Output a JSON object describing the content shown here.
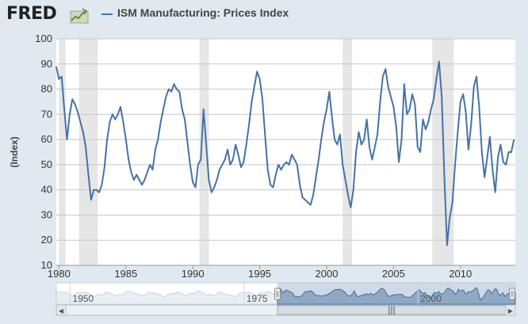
{
  "header": {
    "logo_text": "FRED",
    "logo_icon": "trend-chart-icon",
    "legend_label": "ISM Manufacturing: Prices Index",
    "series_color": "#4572a7"
  },
  "chart_data": {
    "type": "line",
    "title": "ISM Manufacturing: Prices Index",
    "xlabel": "",
    "ylabel": "(Index)",
    "xlim": [
      1979.8,
      2014.1
    ],
    "ylim": [
      10,
      100
    ],
    "x_ticks": [
      1980,
      1985,
      1990,
      1995,
      2000,
      2005,
      2010
    ],
    "x_tick_labels": [
      "1980",
      "1985",
      "1990",
      "1995",
      "2000",
      "2005",
      "2010"
    ],
    "y_ticks": [
      10,
      20,
      30,
      40,
      50,
      60,
      70,
      80,
      90,
      100
    ],
    "y_tick_labels": [
      "10",
      "20",
      "30",
      "40",
      "50",
      "60",
      "70",
      "80",
      "90",
      "100"
    ],
    "grid": "horizontal",
    "recessions": [
      [
        1980.0,
        1980.5
      ],
      [
        1981.5,
        1982.9
      ],
      [
        1990.5,
        1991.2
      ],
      [
        2001.2,
        2001.9
      ],
      [
        2007.9,
        2009.5
      ]
    ],
    "series": [
      {
        "name": "ISM Manufacturing: Prices Index",
        "color": "#4572a7",
        "points": [
          [
            1979.8,
            89
          ],
          [
            1980.0,
            84
          ],
          [
            1980.2,
            85
          ],
          [
            1980.4,
            72
          ],
          [
            1980.6,
            60
          ],
          [
            1980.8,
            70
          ],
          [
            1981.0,
            76
          ],
          [
            1981.2,
            74
          ],
          [
            1981.4,
            71
          ],
          [
            1981.6,
            67
          ],
          [
            1981.8,
            63
          ],
          [
            1982.0,
            57
          ],
          [
            1982.2,
            46
          ],
          [
            1982.4,
            36
          ],
          [
            1982.6,
            40
          ],
          [
            1982.8,
            40
          ],
          [
            1983.0,
            39
          ],
          [
            1983.2,
            42
          ],
          [
            1983.4,
            49
          ],
          [
            1983.6,
            60
          ],
          [
            1983.8,
            67
          ],
          [
            1984.0,
            70
          ],
          [
            1984.2,
            68
          ],
          [
            1984.4,
            70
          ],
          [
            1984.6,
            73
          ],
          [
            1984.8,
            67
          ],
          [
            1985.0,
            60
          ],
          [
            1985.2,
            52
          ],
          [
            1985.4,
            47
          ],
          [
            1985.6,
            44
          ],
          [
            1985.8,
            46
          ],
          [
            1986.0,
            44
          ],
          [
            1986.2,
            42
          ],
          [
            1986.4,
            44
          ],
          [
            1986.6,
            47
          ],
          [
            1986.8,
            50
          ],
          [
            1987.0,
            48
          ],
          [
            1987.2,
            56
          ],
          [
            1987.4,
            60
          ],
          [
            1987.6,
            67
          ],
          [
            1987.8,
            72
          ],
          [
            1988.0,
            77
          ],
          [
            1988.2,
            80
          ],
          [
            1988.4,
            79
          ],
          [
            1988.6,
            82
          ],
          [
            1988.8,
            80
          ],
          [
            1989.0,
            79
          ],
          [
            1989.2,
            72
          ],
          [
            1989.4,
            68
          ],
          [
            1989.6,
            59
          ],
          [
            1989.8,
            50
          ],
          [
            1990.0,
            43
          ],
          [
            1990.2,
            41
          ],
          [
            1990.4,
            50
          ],
          [
            1990.6,
            52
          ],
          [
            1990.8,
            72
          ],
          [
            1991.0,
            58
          ],
          [
            1991.2,
            44
          ],
          [
            1991.4,
            39
          ],
          [
            1991.6,
            41
          ],
          [
            1991.8,
            44
          ],
          [
            1992.0,
            48
          ],
          [
            1992.2,
            50
          ],
          [
            1992.4,
            52
          ],
          [
            1992.6,
            56
          ],
          [
            1992.8,
            50
          ],
          [
            1993.0,
            52
          ],
          [
            1993.2,
            58
          ],
          [
            1993.4,
            54
          ],
          [
            1993.6,
            49
          ],
          [
            1993.8,
            51
          ],
          [
            1994.0,
            58
          ],
          [
            1994.2,
            66
          ],
          [
            1994.4,
            75
          ],
          [
            1994.6,
            81
          ],
          [
            1994.8,
            87
          ],
          [
            1995.0,
            84
          ],
          [
            1995.2,
            76
          ],
          [
            1995.4,
            62
          ],
          [
            1995.6,
            48
          ],
          [
            1995.8,
            42
          ],
          [
            1996.0,
            41
          ],
          [
            1996.2,
            46
          ],
          [
            1996.4,
            50
          ],
          [
            1996.6,
            48
          ],
          [
            1996.8,
            50
          ],
          [
            1997.0,
            51
          ],
          [
            1997.2,
            50
          ],
          [
            1997.4,
            54
          ],
          [
            1997.6,
            52
          ],
          [
            1997.8,
            50
          ],
          [
            1998.0,
            42
          ],
          [
            1998.2,
            37
          ],
          [
            1998.4,
            36
          ],
          [
            1998.6,
            35
          ],
          [
            1998.8,
            34
          ],
          [
            1999.0,
            38
          ],
          [
            1999.2,
            45
          ],
          [
            1999.4,
            52
          ],
          [
            1999.6,
            60
          ],
          [
            1999.8,
            67
          ],
          [
            2000.0,
            72
          ],
          [
            2000.2,
            79
          ],
          [
            2000.4,
            69
          ],
          [
            2000.6,
            60
          ],
          [
            2000.8,
            58
          ],
          [
            2001.0,
            62
          ],
          [
            2001.2,
            50
          ],
          [
            2001.4,
            44
          ],
          [
            2001.6,
            38
          ],
          [
            2001.8,
            33
          ],
          [
            2002.0,
            40
          ],
          [
            2002.2,
            55
          ],
          [
            2002.4,
            63
          ],
          [
            2002.6,
            58
          ],
          [
            2002.8,
            60
          ],
          [
            2003.0,
            68
          ],
          [
            2003.2,
            57
          ],
          [
            2003.4,
            52
          ],
          [
            2003.6,
            57
          ],
          [
            2003.8,
            62
          ],
          [
            2004.0,
            75
          ],
          [
            2004.2,
            85
          ],
          [
            2004.4,
            88
          ],
          [
            2004.6,
            81
          ],
          [
            2004.8,
            77
          ],
          [
            2005.0,
            73
          ],
          [
            2005.2,
            65
          ],
          [
            2005.4,
            51
          ],
          [
            2005.6,
            60
          ],
          [
            2005.8,
            82
          ],
          [
            2006.0,
            70
          ],
          [
            2006.2,
            72
          ],
          [
            2006.4,
            78
          ],
          [
            2006.6,
            74
          ],
          [
            2006.8,
            57
          ],
          [
            2007.0,
            55
          ],
          [
            2007.2,
            68
          ],
          [
            2007.4,
            64
          ],
          [
            2007.6,
            67
          ],
          [
            2007.8,
            72
          ],
          [
            2008.0,
            76
          ],
          [
            2008.2,
            84
          ],
          [
            2008.4,
            91
          ],
          [
            2008.6,
            77
          ],
          [
            2008.8,
            45
          ],
          [
            2009.0,
            18
          ],
          [
            2009.2,
            29
          ],
          [
            2009.4,
            35
          ],
          [
            2009.6,
            50
          ],
          [
            2009.8,
            63
          ],
          [
            2010.0,
            75
          ],
          [
            2010.2,
            78
          ],
          [
            2010.4,
            71
          ],
          [
            2010.6,
            56
          ],
          [
            2010.8,
            66
          ],
          [
            2011.0,
            81
          ],
          [
            2011.2,
            85
          ],
          [
            2011.4,
            73
          ],
          [
            2011.6,
            55
          ],
          [
            2011.8,
            45
          ],
          [
            2012.0,
            53
          ],
          [
            2012.2,
            61
          ],
          [
            2012.4,
            48
          ],
          [
            2012.6,
            39
          ],
          [
            2012.8,
            53
          ],
          [
            2013.0,
            58
          ],
          [
            2013.2,
            51
          ],
          [
            2013.4,
            50
          ],
          [
            2013.6,
            55
          ],
          [
            2013.8,
            55
          ],
          [
            2014.0,
            60
          ]
        ]
      }
    ]
  },
  "navigator": {
    "labels": [
      "1950",
      "1975",
      "2000"
    ],
    "label_years": [
      1950,
      1975,
      2000
    ],
    "range_start": 1948,
    "range_end": 2014,
    "selected_from": 1979.8,
    "selected_to": 2014,
    "left_arrow": "◀",
    "right_arrow": "▶",
    "handle_glyph": "|||"
  }
}
